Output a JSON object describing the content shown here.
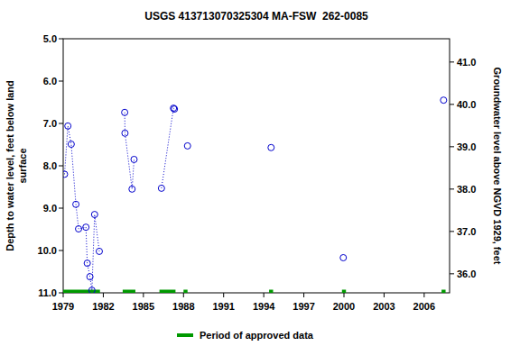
{
  "chart_data": {
    "type": "scatter",
    "title": "USGS 413713070325304 MA-FSW  262-0085",
    "ylabel": [
      "Depth to water level, feet below land",
      "surface"
    ],
    "y2label": "Groundwater level above NGVD 1929, feet",
    "xlim": [
      1979,
      2007.9
    ],
    "xticks": [
      1979,
      1982,
      1985,
      1988,
      1991,
      1994,
      1997,
      2000,
      2003,
      2006
    ],
    "ylim": [
      5,
      11
    ],
    "yticks": [
      {
        "value": 5,
        "label": "5.0"
      },
      {
        "value": 6,
        "label": "6.0"
      },
      {
        "value": 7,
        "label": "7.0"
      },
      {
        "value": 8,
        "label": "8.0"
      },
      {
        "value": 9,
        "label": "9.0"
      },
      {
        "value": 10,
        "label": "10.0"
      },
      {
        "value": 11,
        "label": "11.0"
      }
    ],
    "y2lim": [
      41.55,
      35.55
    ],
    "y2ticks": [
      {
        "value": 36,
        "label": "36.0"
      },
      {
        "value": 37,
        "label": "37.0"
      },
      {
        "value": 38,
        "label": "38.0"
      },
      {
        "value": 39,
        "label": "39.0"
      },
      {
        "value": 40,
        "label": "40.0"
      },
      {
        "value": 41,
        "label": "41.0"
      }
    ],
    "grid": false,
    "legend": "bottom",
    "series": [
      {
        "name": "Depth to water level",
        "color": "#0000cc",
        "marker": "circle",
        "line_style": "dotted",
        "x": [
          1979.1,
          1979.35,
          1979.6,
          1979.95,
          1980.15,
          1980.7,
          1980.8,
          1981.0,
          1981.15,
          1981.35,
          1981.7,
          null,
          1983.6,
          1983.62,
          1984.15,
          1984.3,
          null,
          1986.35,
          1987.25,
          1987.32,
          null,
          1988.3,
          null,
          1994.55,
          null,
          1999.95,
          null,
          2007.45
        ],
        "values": [
          8.2,
          7.06,
          7.49,
          8.91,
          9.49,
          9.45,
          10.3,
          10.62,
          10.94,
          9.15,
          10.02,
          null,
          6.74,
          7.23,
          8.55,
          7.85,
          null,
          8.53,
          6.64,
          6.66,
          null,
          7.53,
          null,
          7.57,
          null,
          10.17,
          null,
          6.45
        ]
      }
    ],
    "approved_periods": {
      "name": "Period of approved data",
      "color": "#009900",
      "periods": [
        [
          1979,
          1981.75
        ],
        [
          1983.45,
          1984.4
        ],
        [
          1986.2,
          1987.4
        ],
        [
          1988.0,
          1988.3
        ],
        [
          1994.4,
          1994.7
        ],
        [
          1999.85,
          2000.15
        ],
        [
          2007.3,
          2007.6
        ]
      ]
    }
  }
}
